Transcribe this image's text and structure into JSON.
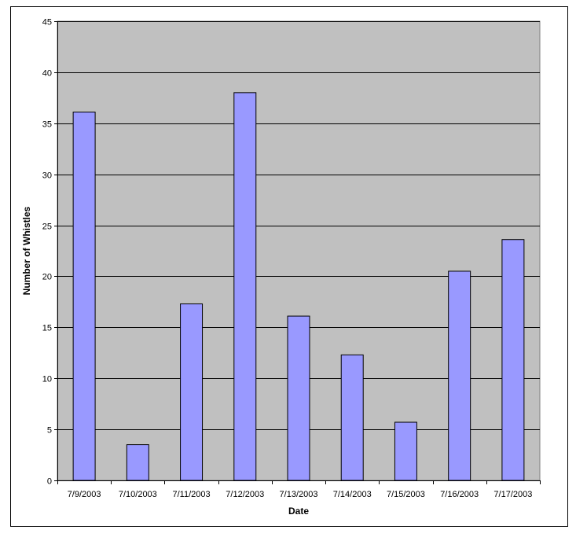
{
  "chart_data": {
    "type": "bar",
    "title": "",
    "xlabel": "Date",
    "ylabel": "Number of Whistles",
    "categories": [
      "7/9/2003",
      "7/10/2003",
      "7/11/2003",
      "7/12/2003",
      "7/13/2003",
      "7/14/2003",
      "7/15/2003",
      "7/16/2003",
      "7/17/2003"
    ],
    "values": [
      36.1,
      3.5,
      17.3,
      38.0,
      16.1,
      12.3,
      5.7,
      20.5,
      23.6
    ],
    "ylim": [
      0,
      45
    ],
    "yticks": [
      0,
      5,
      10,
      15,
      20,
      25,
      30,
      35,
      40,
      45
    ],
    "grid": true,
    "legend": "none",
    "colors": {
      "bar_fill": "#9999ff",
      "bar_stroke": "#000000",
      "plot_background": "#c0c0c0",
      "gridline": "#000000"
    }
  }
}
